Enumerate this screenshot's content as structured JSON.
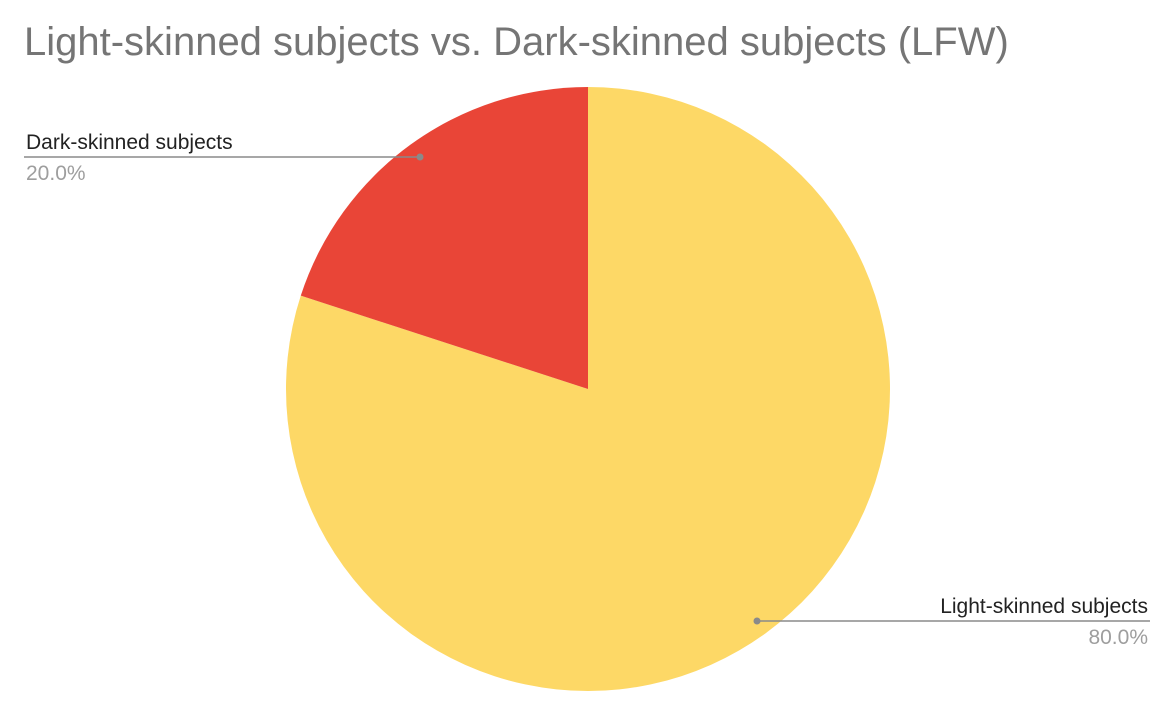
{
  "chart_data": {
    "type": "pie",
    "title": "Light-skinned subjects vs. Dark-skinned subjects (LFW)",
    "slices": [
      {
        "label": "Light-skinned subjects",
        "value": 80.0,
        "display": "80.0%",
        "color": "#FDD866"
      },
      {
        "label": "Dark-skinned subjects",
        "value": 20.0,
        "display": "20.0%",
        "color": "#E94537"
      }
    ],
    "legend": "labels beside slices"
  }
}
